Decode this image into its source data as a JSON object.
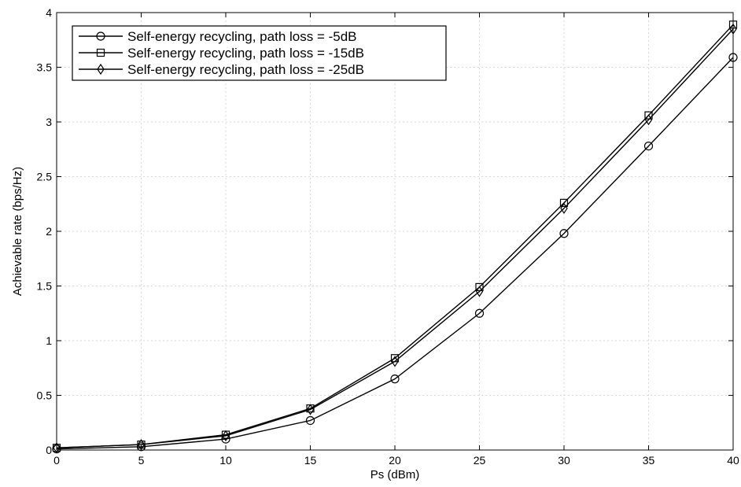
{
  "chart_data": {
    "type": "line",
    "title": "",
    "xlabel": "Ps (dBm)",
    "ylabel": "Achievable rate (bps/Hz)",
    "xlim": [
      0,
      40
    ],
    "ylim": [
      0,
      4
    ],
    "x_ticks": [
      "0",
      "5",
      "10",
      "15",
      "20",
      "25",
      "30",
      "35",
      "40"
    ],
    "y_ticks": [
      "0",
      "0.5",
      "1",
      "1.5",
      "2",
      "2.5",
      "3",
      "3.5",
      "4"
    ],
    "grid": true,
    "legend_position": "top-left",
    "x": [
      0,
      5,
      10,
      15,
      20,
      25,
      30,
      35,
      40
    ],
    "series": [
      {
        "name": "Self-energy recycling, path loss = -5dB",
        "marker": "circle",
        "values": [
          0.01,
          0.03,
          0.1,
          0.27,
          0.65,
          1.25,
          1.98,
          2.78,
          3.59
        ]
      },
      {
        "name": "Self-energy recycling, path loss = -15dB",
        "marker": "square",
        "values": [
          0.02,
          0.05,
          0.14,
          0.38,
          0.84,
          1.49,
          2.26,
          3.06,
          3.89
        ]
      },
      {
        "name": "Self-energy recycling, path loss = -25dB",
        "marker": "diamond",
        "values": [
          0.02,
          0.05,
          0.13,
          0.37,
          0.81,
          1.45,
          2.21,
          3.02,
          3.85
        ]
      }
    ],
    "colors": {
      "line": "#000000",
      "grid": "#d9d9d9",
      "background": "#ffffff"
    }
  }
}
